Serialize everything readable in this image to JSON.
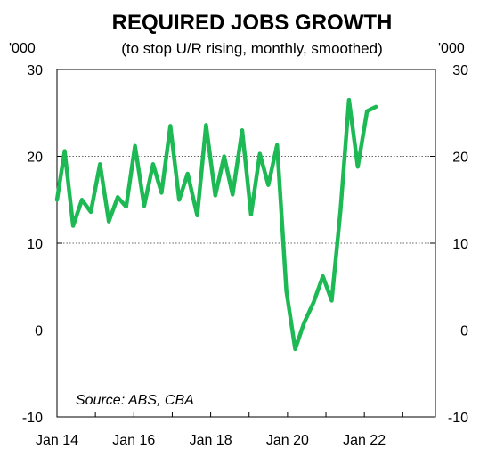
{
  "chart_data": {
    "type": "line",
    "title": "REQUIRED JOBS GROWTH",
    "subtitle": "(to stop U/R rising, monthly, smoothed)",
    "ylabel_left": "'000",
    "ylabel_right": "'000",
    "source": "Source: ABS, CBA",
    "ylim": [
      -10,
      30
    ],
    "yticks": [
      -10,
      0,
      10,
      20,
      30
    ],
    "x_tick_labels": [
      "Jan 14",
      "Jan 16",
      "Jan 18",
      "Jan 20",
      "Jan 22"
    ],
    "x_tick_years": [
      2014,
      2016,
      2018,
      2020,
      2022
    ],
    "xlim": [
      2014.0,
      2023.85
    ],
    "grid": "horizontal dotted",
    "line_color": "#1db954",
    "series": [
      {
        "values": [
          {
            "x": 2014.0,
            "y": 15.0
          },
          {
            "x": 2014.2,
            "y": 20.6
          },
          {
            "x": 2014.42,
            "y": 12.0
          },
          {
            "x": 2014.65,
            "y": 15.0
          },
          {
            "x": 2014.88,
            "y": 13.6
          },
          {
            "x": 2015.12,
            "y": 19.1
          },
          {
            "x": 2015.35,
            "y": 12.5
          },
          {
            "x": 2015.58,
            "y": 15.3
          },
          {
            "x": 2015.8,
            "y": 14.2
          },
          {
            "x": 2016.03,
            "y": 21.2
          },
          {
            "x": 2016.27,
            "y": 14.3
          },
          {
            "x": 2016.5,
            "y": 19.1
          },
          {
            "x": 2016.72,
            "y": 15.8
          },
          {
            "x": 2016.95,
            "y": 23.5
          },
          {
            "x": 2017.18,
            "y": 15.0
          },
          {
            "x": 2017.4,
            "y": 18.0
          },
          {
            "x": 2017.65,
            "y": 13.2
          },
          {
            "x": 2017.88,
            "y": 23.6
          },
          {
            "x": 2018.12,
            "y": 15.5
          },
          {
            "x": 2018.35,
            "y": 20.0
          },
          {
            "x": 2018.57,
            "y": 15.6
          },
          {
            "x": 2018.82,
            "y": 23.0
          },
          {
            "x": 2019.05,
            "y": 13.3
          },
          {
            "x": 2019.28,
            "y": 20.3
          },
          {
            "x": 2019.5,
            "y": 16.7
          },
          {
            "x": 2019.73,
            "y": 21.3
          },
          {
            "x": 2019.97,
            "y": 4.5
          },
          {
            "x": 2020.2,
            "y": -2.2
          },
          {
            "x": 2020.43,
            "y": 0.8
          },
          {
            "x": 2020.68,
            "y": 3.2
          },
          {
            "x": 2020.92,
            "y": 6.2
          },
          {
            "x": 2021.15,
            "y": 3.4
          },
          {
            "x": 2021.38,
            "y": 13.8
          },
          {
            "x": 2021.6,
            "y": 26.5
          },
          {
            "x": 2021.83,
            "y": 18.8
          },
          {
            "x": 2022.07,
            "y": 25.2
          },
          {
            "x": 2022.3,
            "y": 25.7
          }
        ]
      }
    ]
  }
}
